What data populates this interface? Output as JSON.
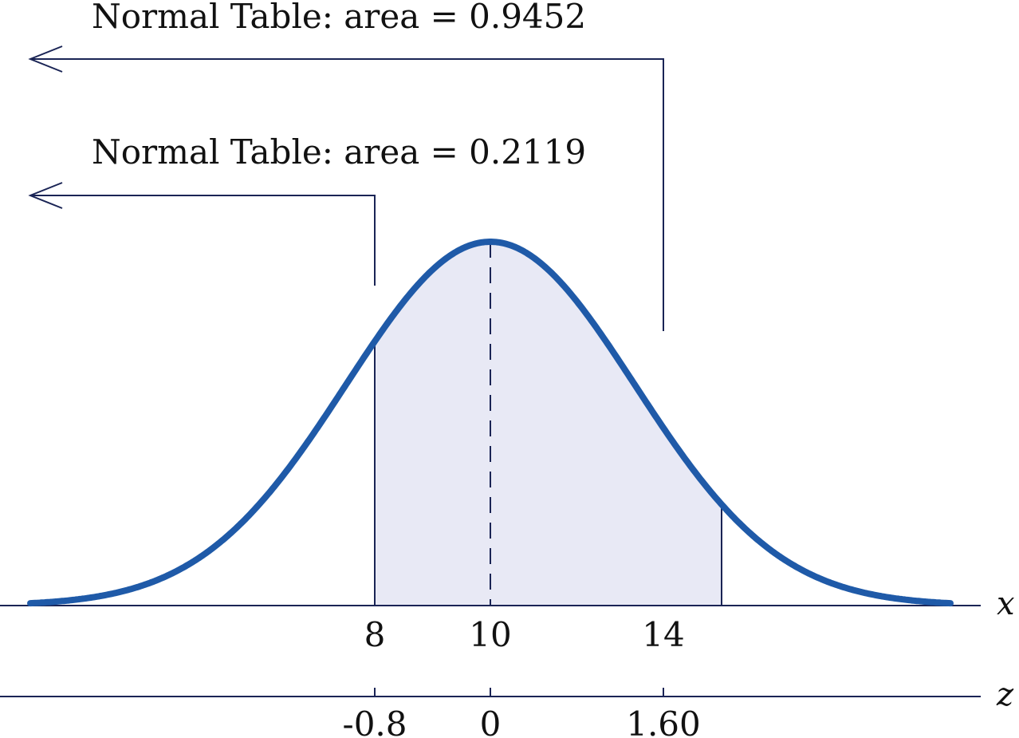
{
  "annotations": {
    "upper_area_text": "Normal Table: area = 0.9452",
    "lower_area_text": "Normal Table: area = 0.2119"
  },
  "chart_data": {
    "type": "area",
    "x_axis": {
      "variable": "x",
      "ticks": [
        8,
        10,
        14
      ],
      "tick_labels": [
        "8",
        "10",
        "14"
      ]
    },
    "z_axis": {
      "variable": "z",
      "ticks": [
        -0.8,
        0,
        1.6
      ],
      "tick_labels": [
        "-0.8",
        "0",
        "1.60"
      ]
    },
    "distribution": {
      "mean": 10,
      "sd": 2.5
    },
    "shaded_interval": [
      8,
      14
    ],
    "dashed_line_at": 10,
    "colors": {
      "curve": "#1f5aa8",
      "shade": "#e8e9f5",
      "lines": "#1a2455"
    }
  }
}
